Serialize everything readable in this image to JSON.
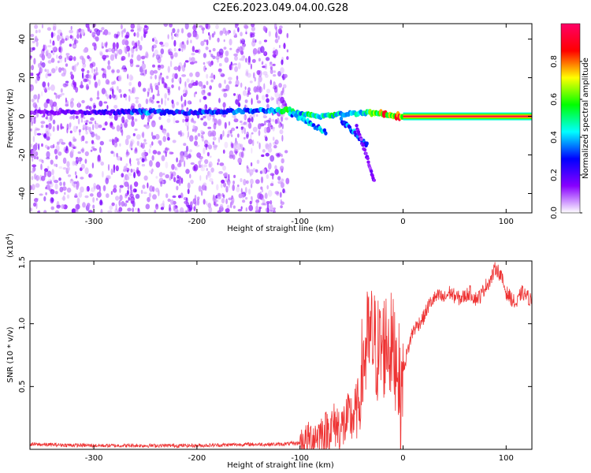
{
  "title": "C2E6.2023.049.04.00.G28",
  "chart_data": [
    {
      "type": "heatmap",
      "xlabel": "Height of straight line (km)",
      "ylabel": "Frequency (Hz)",
      "xlim": [
        -362,
        125
      ],
      "ylim": [
        -50,
        48
      ],
      "xticks": [
        -300,
        -200,
        -100,
        0,
        100
      ],
      "yticks": [
        -40,
        -20,
        0,
        20,
        40
      ],
      "colorbar": {
        "label": "Normalized spectral amplitude",
        "range": [
          0.0,
          1.0
        ],
        "ticks": [
          "0.0",
          "0.2",
          "0.4",
          "0.6",
          "0.8"
        ],
        "colors": [
          "#ffffff",
          "#8800ff",
          "#0000ff",
          "#00ffff",
          "#00ff00",
          "#ffff00",
          "#ff0000",
          "#ff0066"
        ]
      },
      "noise_region": {
        "x_range": [
          -362,
          -112
        ],
        "y_range": [
          -50,
          48
        ],
        "amplitude": 0.15
      },
      "main_trace": [
        {
          "x": -362,
          "y": 2,
          "amp": 0.15
        },
        {
          "x": -280,
          "y": 2,
          "amp": 0.25
        },
        {
          "x": -250,
          "y": 2.5,
          "amp": 0.4
        },
        {
          "x": -230,
          "y": 2,
          "amp": 0.3
        },
        {
          "x": -170,
          "y": 2.5,
          "amp": 0.35
        },
        {
          "x": -130,
          "y": 3,
          "amp": 0.4
        },
        {
          "x": -110,
          "y": 3,
          "amp": 0.6
        },
        {
          "x": -100,
          "y": 1,
          "amp": 0.5
        },
        {
          "x": -80,
          "y": 0,
          "amp": 0.6
        },
        {
          "x": -60,
          "y": 1,
          "amp": 0.5
        },
        {
          "x": -40,
          "y": 2,
          "amp": 0.5
        },
        {
          "x": -20,
          "y": 1.5,
          "amp": 0.85
        },
        {
          "x": -8,
          "y": 0.5,
          "amp": 0.8
        },
        {
          "x": 0,
          "y": 0,
          "amp": 0.9
        },
        {
          "x": 125,
          "y": 0,
          "amp": 0.95
        }
      ],
      "doppler_branches": [
        {
          "from": [
            -110,
            2
          ],
          "to": [
            -75,
            -8
          ],
          "amp": 0.4
        },
        {
          "from": [
            -60,
            -2
          ],
          "to": [
            -35,
            -15
          ],
          "amp": 0.35
        },
        {
          "from": [
            -45,
            -5
          ],
          "to": [
            -28,
            -33
          ],
          "amp": 0.15
        }
      ]
    },
    {
      "type": "line",
      "xlabel": "Height of straight line (km)",
      "ylabel": "SNR (10 * v/v)",
      "y_multiplier": "(x10",
      "y_multiplier_exp": "4",
      "y_multiplier_close": ")",
      "xlim": [
        -362,
        125
      ],
      "ylim": [
        0,
        1.5
      ],
      "xticks": [
        -300,
        -200,
        -100,
        0,
        100
      ],
      "yticks": [
        0.5,
        1.0,
        1.5
      ],
      "ytick_labels": [
        "0.5",
        "1.0",
        "1.5"
      ],
      "color": "#ee3333",
      "series": [
        {
          "x": [
            -362,
            -300,
            -200,
            -150,
            -120,
            -100,
            -95,
            -90,
            -85,
            -80,
            -75,
            -70,
            -65,
            -60,
            -55,
            -50,
            -45,
            -40,
            -35,
            -30,
            -25,
            -20,
            -15,
            -10,
            -5,
            -2,
            0,
            2,
            5,
            8,
            10,
            15,
            20,
            25,
            30,
            35,
            40,
            45,
            50,
            55,
            60,
            65,
            70,
            75,
            80,
            85,
            90,
            95,
            100,
            105,
            110,
            115,
            120,
            125
          ],
          "y": [
            0.04,
            0.03,
            0.03,
            0.04,
            0.04,
            0.05,
            0.07,
            0.09,
            0.11,
            0.13,
            0.14,
            0.17,
            0.2,
            0.16,
            0.22,
            0.25,
            0.3,
            0.45,
            0.65,
            0.7,
            0.6,
            0.62,
            0.7,
            0.6,
            0.55,
            0.05,
            0.6,
            0.7,
            0.8,
            0.9,
            0.95,
            1.0,
            1.05,
            1.15,
            1.2,
            1.22,
            1.2,
            1.25,
            1.22,
            1.2,
            1.22,
            1.25,
            1.2,
            1.22,
            1.3,
            1.35,
            1.45,
            1.38,
            1.25,
            1.2,
            1.15,
            1.25,
            1.22,
            1.18
          ]
        }
      ]
    }
  ]
}
